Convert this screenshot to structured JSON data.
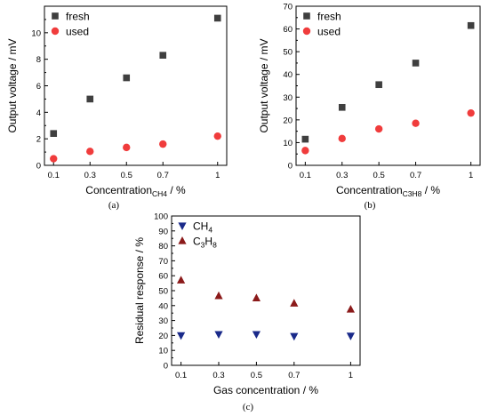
{
  "chart_data": [
    {
      "type": "scatter",
      "caption": "(a)",
      "xlabel": "Concentration",
      "xlabel_sub": "CH4",
      "xlabel_suffix": " / %",
      "ylabel": "Output voltage / mV",
      "xlim": [
        0.05,
        1.05
      ],
      "ylim": [
        0,
        12
      ],
      "xticks": [
        0.1,
        0.3,
        0.5,
        0.7,
        1
      ],
      "xtick_labels": [
        "0.1",
        "0.3",
        "0.5",
        "0.7",
        "1"
      ],
      "yticks": [
        0,
        2,
        4,
        6,
        8,
        10
      ],
      "yminor": [
        1,
        3,
        5,
        7,
        9,
        11
      ],
      "legend_position": "top-left",
      "series": [
        {
          "name": "fresh",
          "marker": "square",
          "color": "#3f3f3f",
          "x": [
            0.1,
            0.3,
            0.5,
            0.7,
            1
          ],
          "y": [
            2.4,
            5.0,
            6.6,
            8.3,
            11.1
          ]
        },
        {
          "name": "used",
          "marker": "circle",
          "color": "#f03c3c",
          "x": [
            0.1,
            0.3,
            0.5,
            0.7,
            1
          ],
          "y": [
            0.5,
            1.05,
            1.35,
            1.6,
            2.2
          ]
        }
      ]
    },
    {
      "type": "scatter",
      "caption": "(b)",
      "xlabel": "Concentration",
      "xlabel_sub": "C3H8",
      "xlabel_suffix": " / %",
      "ylabel": "Output voltage / mV",
      "xlim": [
        0.05,
        1.05
      ],
      "ylim": [
        0,
        70
      ],
      "xticks": [
        0.1,
        0.3,
        0.5,
        0.7,
        1
      ],
      "xtick_labels": [
        "0.1",
        "0.3",
        "0.5",
        "0.7",
        "1"
      ],
      "yticks": [
        0,
        10,
        20,
        30,
        40,
        50,
        60,
        70
      ],
      "yminor": [
        5,
        15,
        25,
        35,
        45,
        55,
        65
      ],
      "legend_position": "top-left",
      "series": [
        {
          "name": "fresh",
          "marker": "square",
          "color": "#3f3f3f",
          "x": [
            0.1,
            0.3,
            0.5,
            0.7,
            1
          ],
          "y": [
            11.5,
            25.5,
            35.5,
            45.0,
            61.5
          ]
        },
        {
          "name": "used",
          "marker": "circle",
          "color": "#f03c3c",
          "x": [
            0.1,
            0.3,
            0.5,
            0.7,
            1
          ],
          "y": [
            6.5,
            11.8,
            16.0,
            18.5,
            23.0
          ]
        }
      ]
    },
    {
      "type": "scatter",
      "caption": "(c)",
      "xlabel": "Gas concentration / %",
      "ylabel": "Residual response / %",
      "xlim": [
        0.05,
        1.05
      ],
      "ylim": [
        0,
        100
      ],
      "xticks": [
        0.1,
        0.3,
        0.5,
        0.7,
        1
      ],
      "xtick_labels": [
        "0.1",
        "0.3",
        "0.5",
        "0.7",
        "1"
      ],
      "yticks": [
        0,
        10,
        20,
        30,
        40,
        50,
        60,
        70,
        80,
        90,
        100
      ],
      "yminor": [
        5,
        15,
        25,
        35,
        45,
        55,
        65,
        75,
        85,
        95
      ],
      "legend_position": "top-left",
      "series": [
        {
          "name": "CH4",
          "name_main": "CH",
          "name_sub": "4",
          "marker": "triangle-down",
          "color": "#1a2a8a",
          "x": [
            0.1,
            0.3,
            0.5,
            0.7,
            1
          ],
          "y": [
            20.0,
            20.8,
            20.8,
            19.5,
            19.7
          ]
        },
        {
          "name": "C3H8",
          "name_main": "C",
          "name_sub": "3",
          "name_mid": "H",
          "name_sub2": "8",
          "marker": "triangle-up",
          "color": "#8b1a1a",
          "x": [
            0.1,
            0.3,
            0.5,
            0.7,
            1
          ],
          "y": [
            57.0,
            46.5,
            45.0,
            41.5,
            37.5
          ]
        }
      ]
    }
  ]
}
